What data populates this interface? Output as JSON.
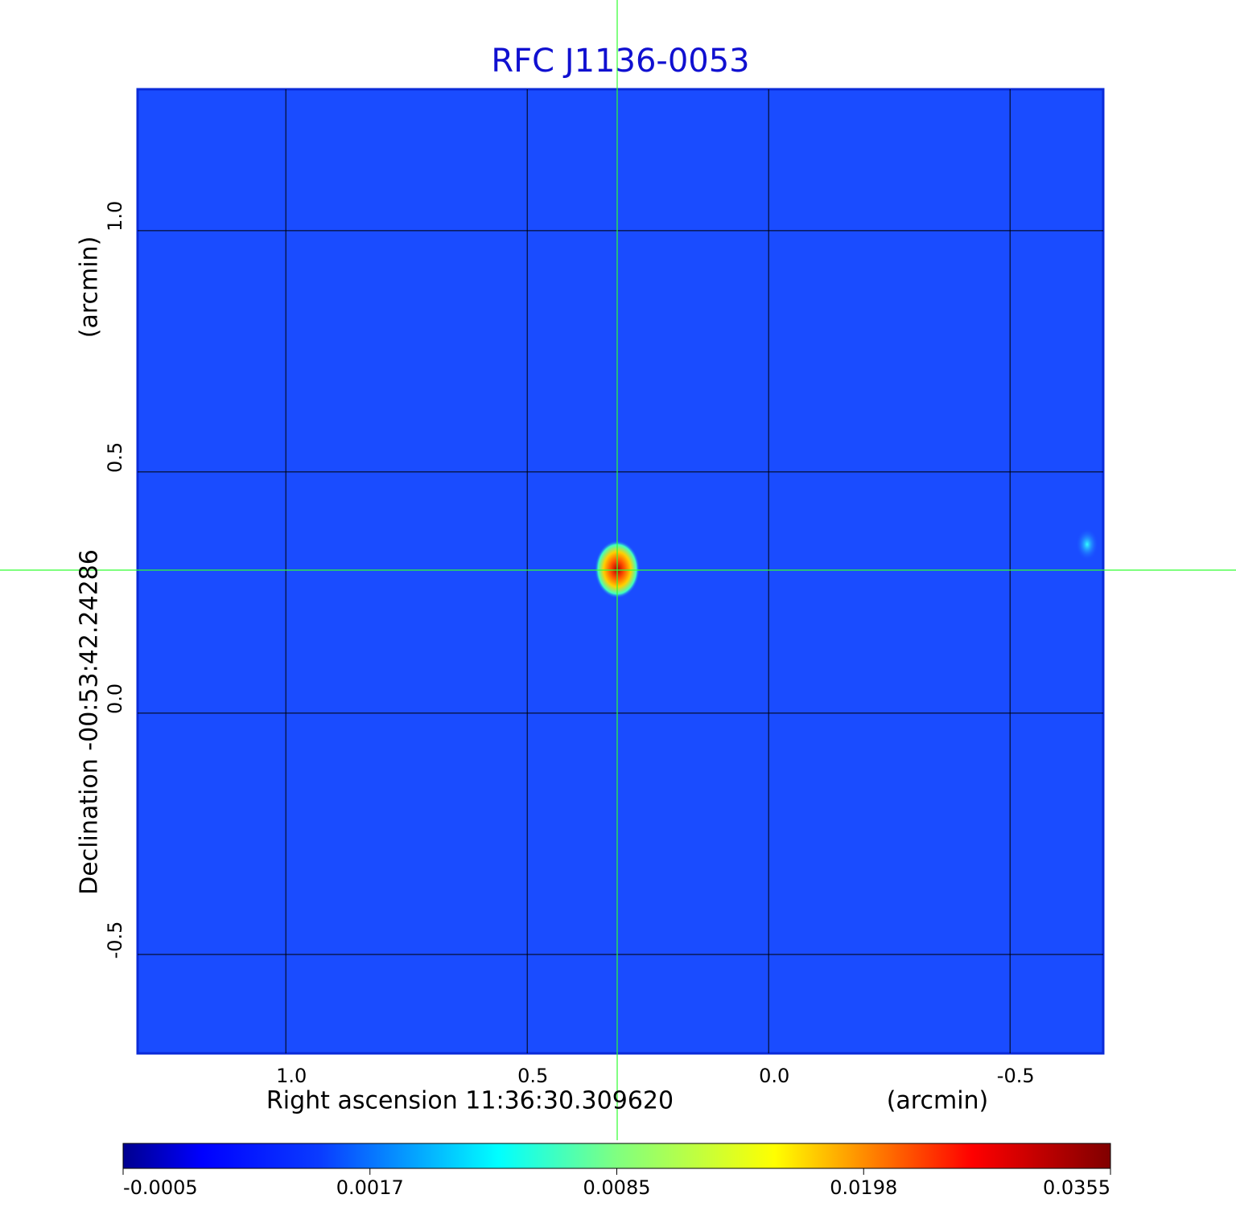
{
  "chart_data": {
    "type": "image",
    "title": "RFC J1136-0053",
    "x_label": "Right ascension  11:36:30.309620",
    "x_unit": "(arcmin)",
    "y_label": "Declination  -00:53:42.24286",
    "y_unit": "(arcmin)",
    "xlim": [
      1.307,
      -0.693
    ],
    "ylim": [
      -0.705,
      1.293
    ],
    "xticks": [
      {
        "value": 1,
        "label": "1.0"
      },
      0.5,
      {
        "value": 0,
        "label": "0.0"
      },
      -0.5
    ],
    "yticks": [
      {
        "value": -0.5,
        "label": "-0.5"
      },
      {
        "value": 0,
        "label": "0.0"
      },
      0.5,
      {
        "value": 1,
        "label": "1.0"
      }
    ],
    "grid": true,
    "colorbar": {
      "ticks": [
        {
          "value": -0.0005,
          "label": "-0.0005"
        },
        0.0017,
        0.0085,
        0.0198,
        0.0355
      ]
    }
  }
}
